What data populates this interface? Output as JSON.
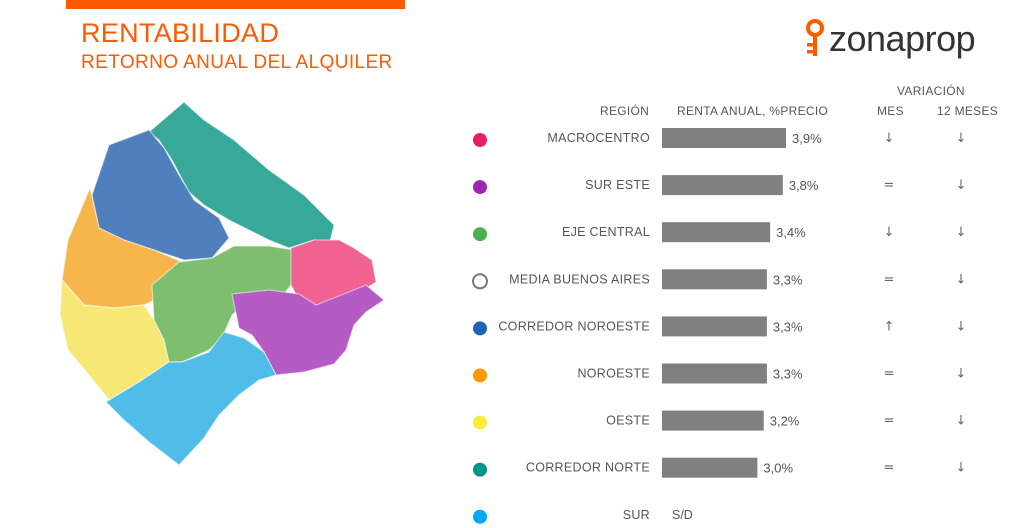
{
  "header": {
    "title": "RENTABILIDAD",
    "subtitle": "RETORNO ANUAL DEL ALQUILER"
  },
  "logo": {
    "text": "zonaprop"
  },
  "table": {
    "col_region": "REGIÓN",
    "col_renta": "RENTA ANUAL, %PRECIO",
    "col_variacion": "VARIACIÓN",
    "col_mes": "MES",
    "col_12m": "12 MESES"
  },
  "colors": {
    "brand": "#ff5a00",
    "bar": "#808080"
  },
  "chart_data": {
    "type": "bar",
    "orientation": "horizontal",
    "title": "RETORNO ANUAL DEL ALQUILER",
    "xlabel": "RENTA ANUAL, %PRECIO",
    "categories": [
      "MACROCENTRO",
      "SUR ESTE",
      "EJE CENTRAL",
      "MEDIA BUENOS AIRES",
      "CORREDOR NOROESTE",
      "NOROESTE",
      "OESTE",
      "CORREDOR NORTE",
      "SUR"
    ],
    "values": [
      3.9,
      3.8,
      3.4,
      3.3,
      3.3,
      3.3,
      3.2,
      3.0,
      null
    ],
    "value_labels": [
      "3,9%",
      "3,8%",
      "3,4%",
      "3,3%",
      "3,3%",
      "3,3%",
      "3,2%",
      "3,0%",
      "S/D"
    ],
    "dot_colors": [
      "#e91e63",
      "#9c27b0",
      "#4caf50",
      "#ffffff",
      "#1e63b4",
      "#ff9800",
      "#ffeb3b",
      "#009688",
      "#03a9f4"
    ],
    "var_mes": [
      "↓",
      "=",
      "↓",
      "=",
      "↑",
      "=",
      "=",
      "=",
      ""
    ],
    "var_12m": [
      "↓",
      "↓",
      "↓",
      "↓",
      "↓",
      "↓",
      "↓",
      "↓",
      ""
    ]
  }
}
